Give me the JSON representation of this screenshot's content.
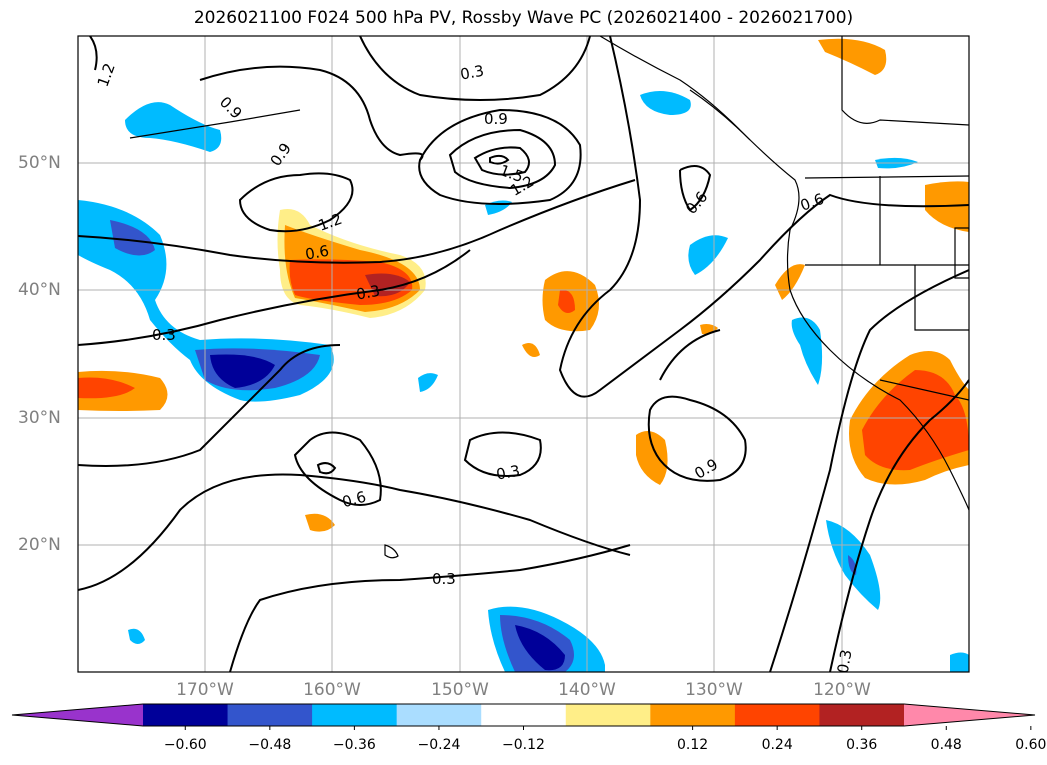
{
  "title": "2026021100 F024 500 hPa PV, Rossby Wave PC (2026021400 - 2026021700)",
  "lat_labels": [
    "50°N",
    "40°N",
    "30°N",
    "20°N"
  ],
  "lon_labels": [
    "170°W",
    "160°W",
    "150°W",
    "140°W",
    "130°W",
    "120°W"
  ],
  "contour_labels": [
    "1.2",
    "0.9",
    "0.3",
    "0.9",
    "0.9",
    "1.5",
    "1.2",
    "1.2",
    "0.6",
    "0.3",
    "0.3",
    "0.6",
    "0.6",
    "0.3",
    "0.6",
    "0.3",
    "0.9",
    "0.3"
  ],
  "colorbar": {
    "tick_labels": [
      "−0.60",
      "−0.48",
      "−0.36",
      "−0.24",
      "−0.12",
      "0.12",
      "0.24",
      "0.36",
      "0.48",
      "0.60"
    ],
    "colors": [
      "#9933cc",
      "#000099",
      "#3355cc",
      "#00bbff",
      "#aaddff",
      "#ffffff",
      "#ffee88",
      "#ff9900",
      "#ff4400",
      "#b22222",
      "#ff88aa"
    ],
    "extend": "both"
  },
  "extent": {
    "lon_min": -180,
    "lon_max": -110,
    "lat_min": 10,
    "lat_max": 60
  }
}
